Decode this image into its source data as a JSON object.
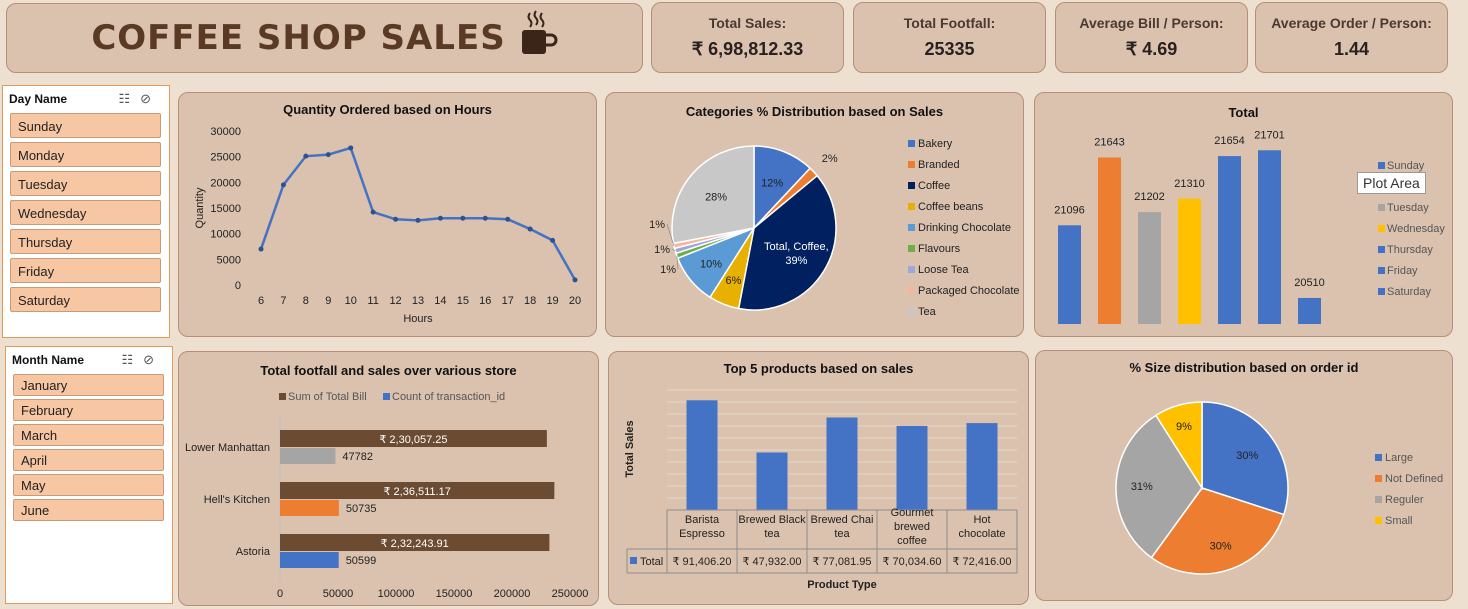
{
  "header": {
    "title": "COFFEE SHOP SALES",
    "icon": "coffee-cup-icon"
  },
  "kpis": [
    {
      "label": "Total Sales:",
      "value": "₹ 6,98,812.33"
    },
    {
      "label": "Total Footfall:",
      "value": "25335"
    },
    {
      "label": "Average Bill / Person:",
      "value": "₹ 4.69"
    },
    {
      "label": "Average Order / Person:",
      "value": "1.44"
    }
  ],
  "slicers": {
    "day": {
      "title": "Day Name",
      "items": [
        "Sunday",
        "Monday",
        "Tuesday",
        "Wednesday",
        "Thursday",
        "Friday",
        "Saturday"
      ]
    },
    "month": {
      "title": "Month Name",
      "items": [
        "January",
        "February",
        "March",
        "April",
        "May",
        "June"
      ]
    }
  },
  "tooltip": "Plot Area",
  "colors": {
    "blue": "#4472c4",
    "orange": "#ed7d31",
    "gray": "#a5a5a5",
    "yellow": "#ffc000",
    "brown": "#6b4c33",
    "navy": "#002060"
  },
  "chart_data": [
    {
      "id": "hours",
      "type": "line",
      "title": "Quantity Ordered based on Hours",
      "xlabel": "Hours",
      "ylabel": "Quantity",
      "x": [
        6,
        7,
        8,
        9,
        10,
        11,
        12,
        13,
        14,
        15,
        16,
        17,
        18,
        19,
        20
      ],
      "values": [
        7000,
        19500,
        25100,
        25400,
        26700,
        14200,
        12800,
        12600,
        13000,
        13000,
        13000,
        12800,
        10900,
        8700,
        1000
      ],
      "ylim": [
        0,
        30000
      ],
      "yticks": [
        0,
        5000,
        10000,
        15000,
        20000,
        25000,
        30000
      ]
    },
    {
      "id": "categories",
      "type": "pie",
      "title": "Categories % Distribution based on Sales",
      "categories": [
        "Bakery",
        "Branded",
        "Coffee",
        "Coffee beans",
        "Drinking Chocolate",
        "Flavours",
        "Loose Tea",
        "Packaged Chocolate",
        "Tea"
      ],
      "values": [
        12,
        2,
        39,
        6,
        10,
        1,
        1,
        1,
        28
      ],
      "labels": [
        "12%",
        "2%",
        "Total, Coffee, 39%",
        "6%",
        "10%",
        "1%",
        "1%",
        "1%",
        "28%"
      ],
      "colors": [
        "#4472c4",
        "#ed7d31",
        "#002060",
        "#e8b000",
        "#5b9bd5",
        "#70ad47",
        "#9ea8d8",
        "#f4b6a0",
        "#c8c8c8"
      ],
      "legend": "right"
    },
    {
      "id": "daytotal",
      "type": "bar",
      "title": "Total",
      "categories": [
        "Sunday",
        "Monday",
        "Tuesday",
        "Wednesday",
        "Thursday",
        "Friday",
        "Saturday"
      ],
      "values": [
        21096,
        21643,
        21202,
        21310,
        21654,
        21701,
        20510
      ],
      "colors": [
        "#4472c4",
        "#ed7d31",
        "#a5a5a5",
        "#ffc000",
        "#4472c4",
        "#4472c4",
        "#4472c4"
      ],
      "legend": "right"
    },
    {
      "id": "stores",
      "type": "bar",
      "orientation": "horizontal",
      "title": "Total footfall and sales over various store",
      "categories": [
        "Lower Manhattan",
        "Hell's Kitchen",
        "Astoria"
      ],
      "series": [
        {
          "name": "Sum of Total Bill",
          "values": [
            230057.25,
            236511.17,
            232243.91
          ],
          "labels": [
            "₹ 2,30,057.25",
            "₹ 2,36,511.17",
            "₹ 2,32,243.91"
          ]
        },
        {
          "name": "Count of transaction_id",
          "values": [
            47782,
            50735,
            50599
          ],
          "labels": [
            "47782",
            "50735",
            "50599"
          ]
        }
      ],
      "count_colors": [
        "#a5a5a5",
        "#ed7d31",
        "#4472c4"
      ],
      "xlim": [
        0,
        250000
      ],
      "xticks": [
        "0",
        "50000",
        "100000",
        "150000",
        "200000",
        "250000"
      ],
      "legend": "top"
    },
    {
      "id": "products",
      "type": "bar",
      "title": "Top 5 products based on sales",
      "xlabel": "Product Type",
      "ylabel": "Total Sales",
      "categories": [
        [
          "Barista",
          "Espresso"
        ],
        [
          "Brewed Black",
          "tea"
        ],
        [
          "Brewed Chai",
          "tea"
        ],
        [
          "Gourmet",
          "brewed",
          "coffee"
        ],
        [
          "Hot",
          "chocolate"
        ]
      ],
      "values": [
        91406.2,
        47932.0,
        77081.95,
        70034.6,
        72416.0
      ],
      "table_row_label": "Total",
      "table_values": [
        "₹ 91,406.20",
        "₹ 47,932.00",
        "₹ 77,081.95",
        "₹ 70,034.60",
        "₹ 72,416.00"
      ],
      "ylim": [
        0,
        100000
      ]
    },
    {
      "id": "sizes",
      "type": "pie",
      "title": "% Size distribution based on order id",
      "categories": [
        "Large",
        "Not Defined",
        "Reguler",
        "Small"
      ],
      "values": [
        30,
        30,
        31,
        9
      ],
      "labels": [
        "30%",
        "30%",
        "31%",
        "9%"
      ],
      "colors": [
        "#4472c4",
        "#ed7d31",
        "#a5a5a5",
        "#ffc000"
      ],
      "legend": "right"
    }
  ]
}
